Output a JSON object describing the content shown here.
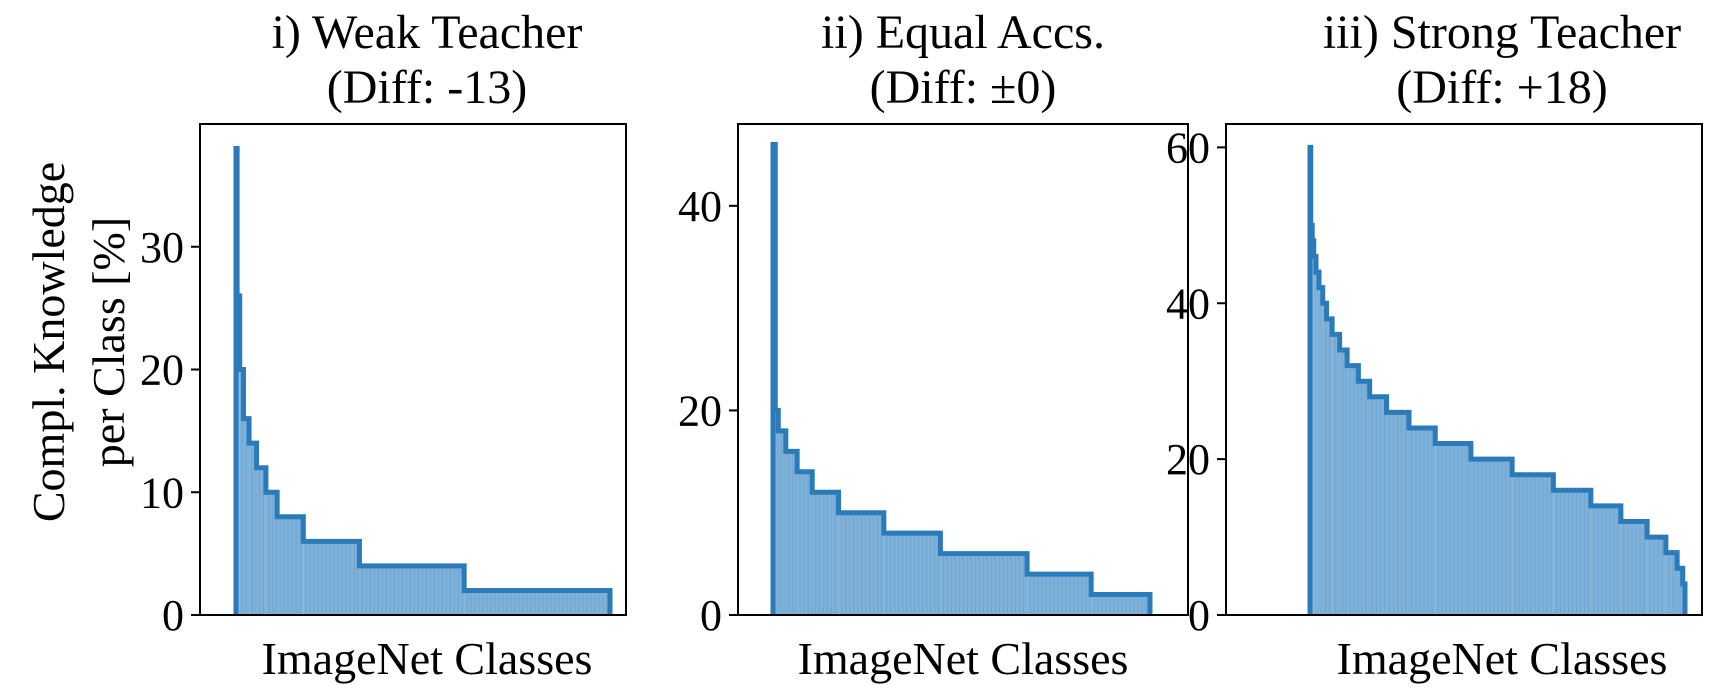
{
  "figure": {
    "ylabel_line1": "Compl. Knowledge",
    "ylabel_line2": "per Class [%]"
  },
  "colors": {
    "line": "#2b7bba",
    "fill": "#7fb1d8",
    "frame": "#000000"
  },
  "chart_data": [
    {
      "type": "area",
      "title_line1": "i) Weak Teacher",
      "title_line2": "(Diff: -13)",
      "xlabel": "ImageNet Classes",
      "ylim": [
        0,
        40
      ],
      "yticks": [
        0,
        10,
        20,
        30
      ],
      "xlim": [
        0,
        1000
      ],
      "x": [
        0,
        3,
        10,
        20,
        35,
        55,
        80,
        110,
        180,
        330,
        610,
        1000
      ],
      "y": [
        38,
        26,
        20,
        16,
        14,
        12,
        10,
        8,
        6,
        4,
        2,
        0
      ]
    },
    {
      "type": "area",
      "title_line1": "ii) Equal Accs.",
      "title_line2": "(Diff: ±0)",
      "xlabel": "ImageNet Classes",
      "ylim": [
        0,
        48
      ],
      "yticks": [
        0,
        20,
        40
      ],
      "xlim": [
        0,
        1000
      ],
      "x": [
        0,
        6,
        14,
        34,
        64,
        104,
        174,
        294,
        444,
        674,
        844,
        1000
      ],
      "y": [
        46,
        20,
        18,
        16,
        14,
        12,
        10,
        8,
        6,
        4,
        2,
        0
      ]
    },
    {
      "type": "area",
      "title_line1": "iii) Strong Teacher",
      "title_line2": "(Diff: +18)",
      "xlabel": "ImageNet Classes",
      "ylim": [
        0,
        63
      ],
      "yticks": [
        0,
        20,
        40,
        60
      ],
      "xlim": [
        0,
        1000
      ],
      "x": [
        0,
        2,
        6,
        10,
        16,
        24,
        34,
        44,
        59,
        79,
        99,
        129,
        159,
        204,
        264,
        334,
        429,
        539,
        649,
        749,
        829,
        899,
        949,
        979,
        994,
        1000
      ],
      "y": [
        60,
        50,
        48,
        46,
        44,
        42,
        40,
        38,
        36,
        34,
        32,
        30,
        28,
        26,
        24,
        22,
        20,
        18,
        16,
        14,
        12,
        10,
        8,
        6,
        4,
        2
      ]
    }
  ]
}
